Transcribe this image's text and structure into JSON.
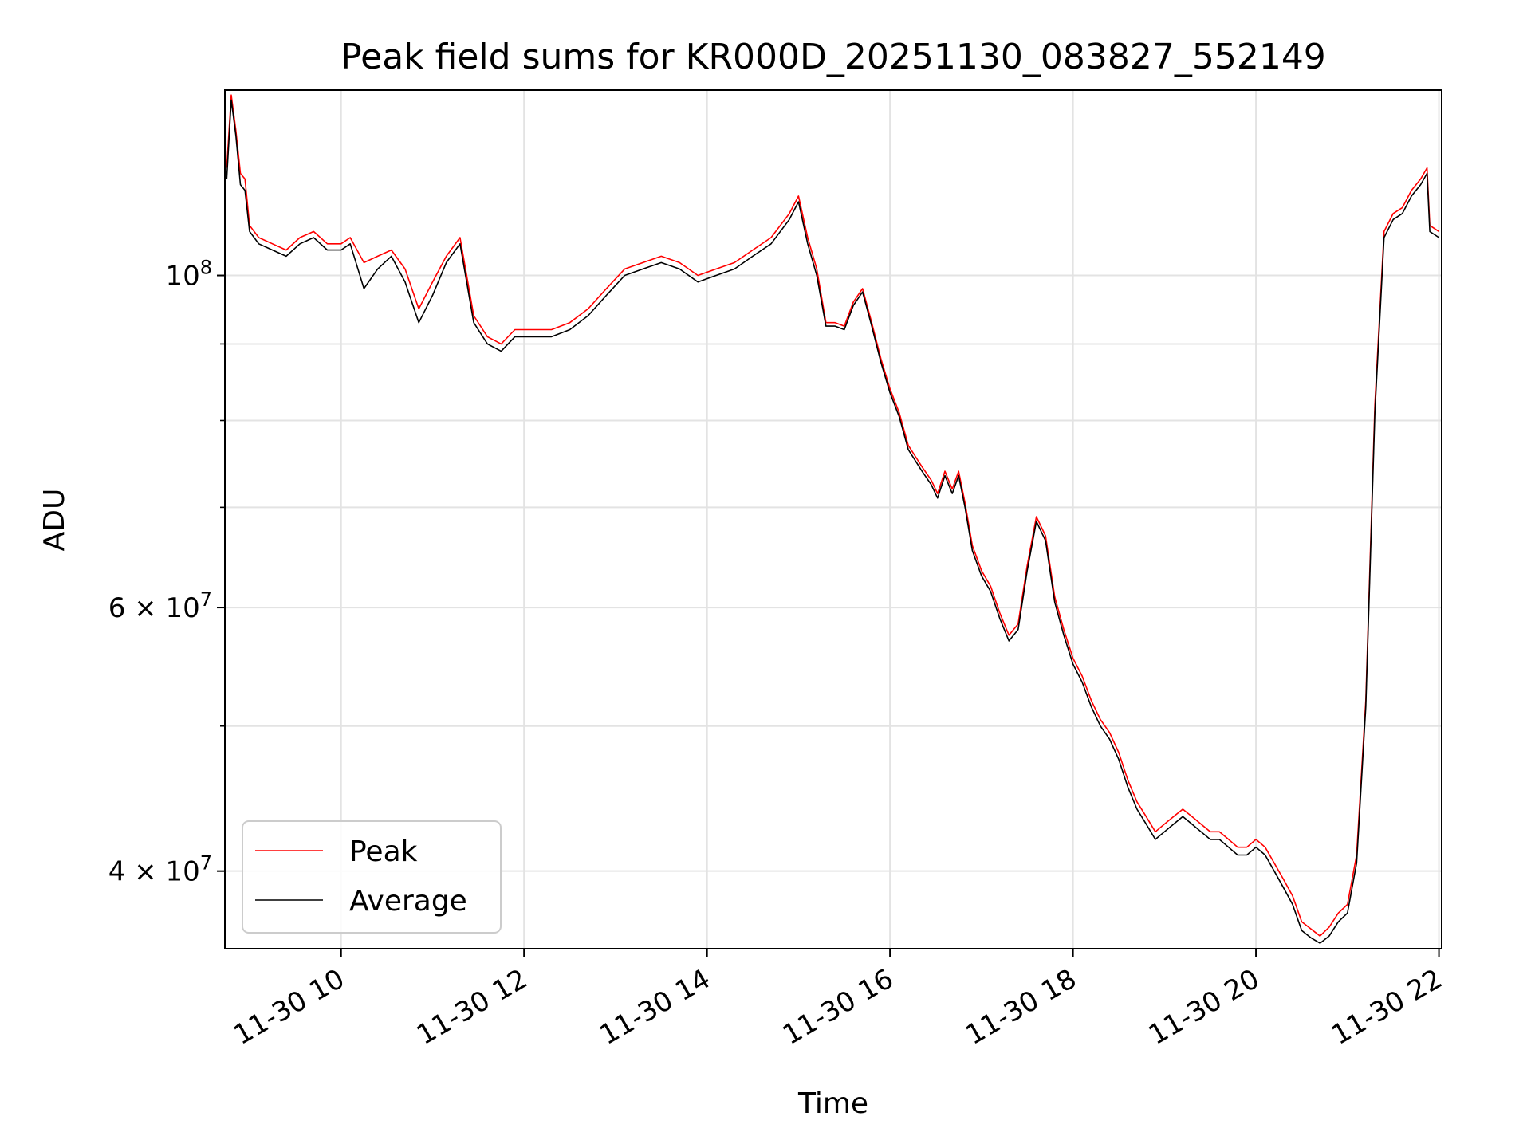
{
  "chart_data": {
    "type": "line",
    "title": "Peak field sums for KR000D_20251130_083827_552149",
    "xlabel": "Time",
    "ylabel": "ADU",
    "yscale": "log",
    "xlim": [
      8.73,
      22.03
    ],
    "ylim": [
      35500000,
      133000000
    ],
    "grid": true,
    "legend_loc": "lower-left",
    "xticks": [
      {
        "value": 10,
        "label": "11-30 10"
      },
      {
        "value": 12,
        "label": "11-30 12"
      },
      {
        "value": 14,
        "label": "11-30 14"
      },
      {
        "value": 16,
        "label": "11-30 16"
      },
      {
        "value": 18,
        "label": "11-30 18"
      },
      {
        "value": 20,
        "label": "11-30 20"
      },
      {
        "value": 22,
        "label": "11-30 22"
      }
    ],
    "yticks": [
      {
        "value": 100000000,
        "base": "10",
        "exp": "8"
      },
      {
        "value": 60000000,
        "base": "6 × 10",
        "exp": "7"
      },
      {
        "value": 40000000,
        "base": "4 × 10",
        "exp": "7"
      }
    ],
    "yminor": [
      50000000,
      70000000,
      80000000,
      90000000
    ],
    "series": [
      {
        "name": "Peak",
        "color": "#ff0000",
        "x": [
          8.75,
          8.8,
          8.85,
          8.9,
          8.95,
          9.0,
          9.1,
          9.25,
          9.4,
          9.55,
          9.7,
          9.85,
          10.0,
          10.1,
          10.25,
          10.4,
          10.55,
          10.7,
          10.85,
          11.0,
          11.15,
          11.3,
          11.45,
          11.6,
          11.75,
          11.9,
          12.1,
          12.3,
          12.5,
          12.7,
          12.9,
          13.1,
          13.3,
          13.5,
          13.7,
          13.9,
          14.1,
          14.3,
          14.5,
          14.7,
          14.9,
          15.0,
          15.1,
          15.2,
          15.3,
          15.4,
          15.5,
          15.6,
          15.7,
          15.8,
          15.9,
          16.0,
          16.1,
          16.2,
          16.35,
          16.45,
          16.52,
          16.6,
          16.68,
          16.75,
          16.82,
          16.9,
          17.0,
          17.1,
          17.2,
          17.3,
          17.4,
          17.5,
          17.6,
          17.7,
          17.8,
          17.9,
          18.0,
          18.1,
          18.2,
          18.3,
          18.4,
          18.5,
          18.6,
          18.7,
          18.8,
          18.9,
          19.0,
          19.1,
          19.2,
          19.3,
          19.4,
          19.5,
          19.6,
          19.7,
          19.8,
          19.9,
          20.0,
          20.1,
          20.2,
          20.3,
          20.4,
          20.5,
          20.6,
          20.7,
          20.8,
          20.9,
          21.0,
          21.1,
          21.2,
          21.3,
          21.4,
          21.5,
          21.6,
          21.7,
          21.8,
          21.87,
          21.9,
          22.0
        ],
        "values": [
          118000000,
          132000000,
          125000000,
          117000000,
          116000000,
          108000000,
          106000000,
          105000000,
          104000000,
          106000000,
          107000000,
          105000000,
          105000000,
          106000000,
          102000000,
          103000000,
          104000000,
          101000000,
          95000000,
          99000000,
          103000000,
          106000000,
          94000000,
          91000000,
          90000000,
          92000000,
          92000000,
          92000000,
          93000000,
          95000000,
          98000000,
          101000000,
          102000000,
          103000000,
          102000000,
          100000000,
          101000000,
          102000000,
          104000000,
          106000000,
          110000000,
          113000000,
          106000000,
          101000000,
          93000000,
          93000000,
          92500000,
          96000000,
          98000000,
          93000000,
          88000000,
          84000000,
          81000000,
          77000000,
          74500000,
          73000000,
          71500000,
          74000000,
          72000000,
          74000000,
          70500000,
          66000000,
          63500000,
          62000000,
          59500000,
          57500000,
          58500000,
          64000000,
          69000000,
          67000000,
          61000000,
          58000000,
          55500000,
          54000000,
          52000000,
          50500000,
          49500000,
          48000000,
          46000000,
          44500000,
          43500000,
          42500000,
          43000000,
          43500000,
          44000000,
          43500000,
          43000000,
          42500000,
          42500000,
          42000000,
          41500000,
          41500000,
          42000000,
          41500000,
          40500000,
          39500000,
          38500000,
          37000000,
          36600000,
          36200000,
          36700000,
          37500000,
          38000000,
          41000000,
          52000000,
          82000000,
          107000000,
          110000000,
          111000000,
          114000000,
          116000000,
          118000000,
          108000000,
          107000000
        ]
      },
      {
        "name": "Average",
        "color": "#000000",
        "x": [
          8.75,
          8.8,
          8.85,
          8.9,
          8.95,
          9.0,
          9.1,
          9.25,
          9.4,
          9.55,
          9.7,
          9.85,
          10.0,
          10.1,
          10.25,
          10.4,
          10.55,
          10.7,
          10.85,
          11.0,
          11.15,
          11.3,
          11.45,
          11.6,
          11.75,
          11.9,
          12.1,
          12.3,
          12.5,
          12.7,
          12.9,
          13.1,
          13.3,
          13.5,
          13.7,
          13.9,
          14.1,
          14.3,
          14.5,
          14.7,
          14.9,
          15.0,
          15.1,
          15.2,
          15.3,
          15.4,
          15.5,
          15.6,
          15.7,
          15.8,
          15.9,
          16.0,
          16.1,
          16.2,
          16.35,
          16.45,
          16.52,
          16.6,
          16.68,
          16.75,
          16.82,
          16.9,
          17.0,
          17.1,
          17.2,
          17.3,
          17.4,
          17.5,
          17.6,
          17.7,
          17.8,
          17.9,
          18.0,
          18.1,
          18.2,
          18.3,
          18.4,
          18.5,
          18.6,
          18.7,
          18.8,
          18.9,
          19.0,
          19.1,
          19.2,
          19.3,
          19.4,
          19.5,
          19.6,
          19.7,
          19.8,
          19.9,
          20.0,
          20.1,
          20.2,
          20.3,
          20.4,
          20.5,
          20.6,
          20.7,
          20.8,
          20.9,
          21.0,
          21.1,
          21.2,
          21.3,
          21.4,
          21.5,
          21.6,
          21.7,
          21.8,
          21.87,
          21.9,
          22.0
        ],
        "values": [
          116000000,
          131000000,
          124000000,
          115000000,
          114000000,
          107000000,
          105000000,
          104000000,
          103000000,
          105000000,
          106000000,
          104000000,
          104000000,
          105000000,
          98000000,
          101000000,
          103000000,
          99000000,
          93000000,
          97000000,
          102000000,
          105000000,
          93000000,
          90000000,
          89000000,
          91000000,
          91000000,
          91000000,
          92000000,
          94000000,
          97000000,
          100000000,
          101000000,
          102000000,
          101000000,
          99000000,
          100000000,
          101000000,
          103000000,
          105000000,
          109000000,
          112000000,
          105000000,
          100000000,
          92500000,
          92500000,
          92000000,
          95500000,
          97500000,
          92500000,
          87500000,
          83500000,
          80500000,
          76500000,
          74000000,
          72500000,
          71000000,
          73500000,
          71500000,
          73500000,
          70000000,
          65500000,
          63000000,
          61500000,
          59000000,
          57000000,
          58000000,
          63500000,
          68500000,
          66500000,
          60500000,
          57500000,
          55000000,
          53500000,
          51500000,
          50000000,
          49000000,
          47500000,
          45500000,
          44000000,
          43000000,
          42000000,
          42500000,
          43000000,
          43500000,
          43000000,
          42500000,
          42000000,
          42000000,
          41500000,
          41000000,
          41000000,
          41500000,
          41000000,
          40000000,
          39000000,
          38000000,
          36500000,
          36100000,
          35800000,
          36200000,
          37000000,
          37500000,
          40500000,
          51500000,
          81000000,
          106000000,
          109000000,
          110000000,
          113000000,
          115000000,
          117000000,
          107000000,
          106000000
        ]
      }
    ]
  }
}
